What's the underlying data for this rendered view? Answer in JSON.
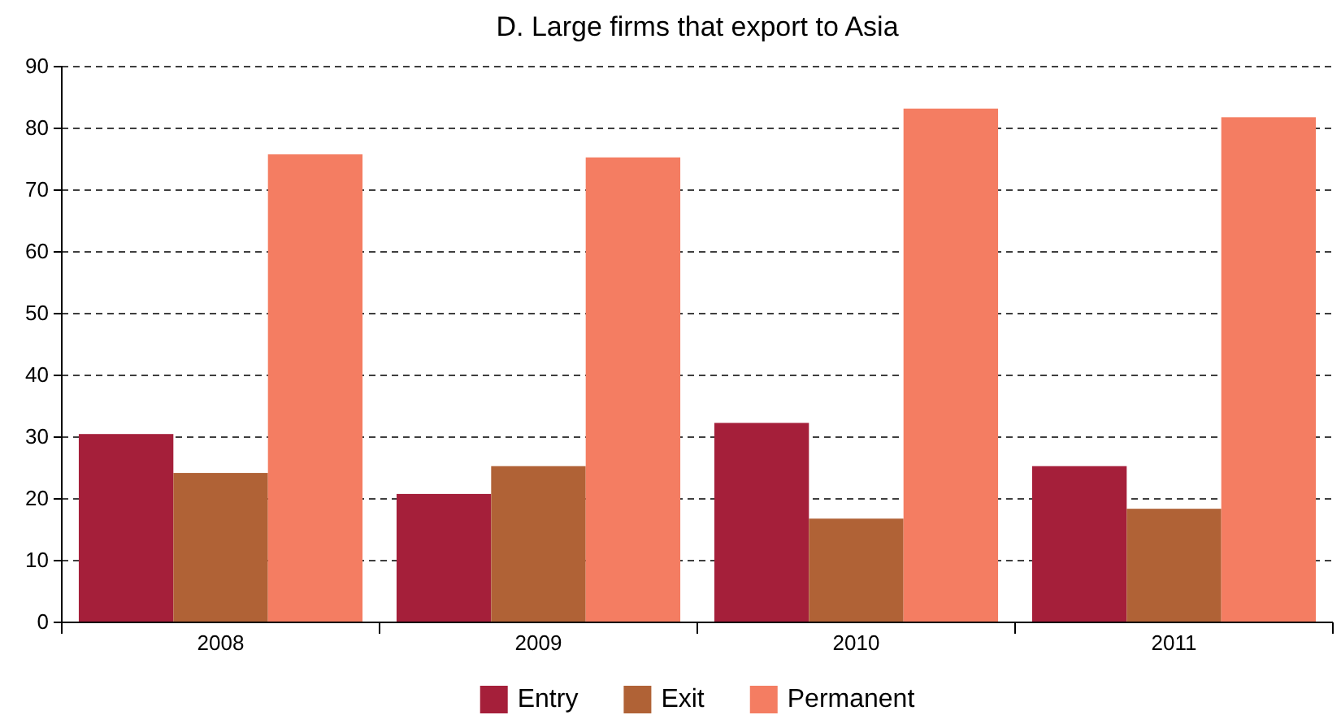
{
  "chart_data": {
    "type": "bar",
    "title": "D. Large firms that export to Asia",
    "categories": [
      "2008",
      "2009",
      "2010",
      "2011"
    ],
    "series": [
      {
        "name": "Entry",
        "color": "#a51f3a",
        "values": [
          30.5,
          20.8,
          32.3,
          25.3
        ]
      },
      {
        "name": "Exit",
        "color": "#b06236",
        "values": [
          24.2,
          25.3,
          16.8,
          18.4
        ]
      },
      {
        "name": "Permanent",
        "color": "#f47d62",
        "values": [
          75.8,
          75.3,
          83.2,
          81.8
        ]
      }
    ],
    "ylim": [
      0,
      90
    ],
    "yticks": [
      0,
      10,
      20,
      30,
      40,
      50,
      60,
      70,
      80,
      90
    ],
    "grid": "y",
    "legend": "bottom"
  }
}
